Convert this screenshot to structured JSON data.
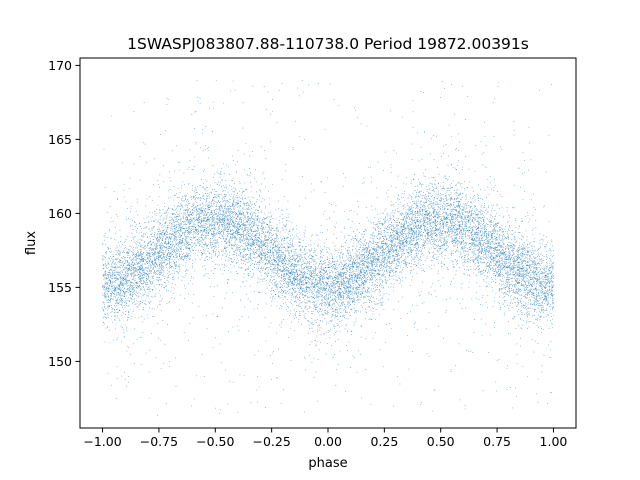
{
  "chart_data": {
    "type": "scatter",
    "title": "1SWASPJ083807.88-110738.0 Period 19872.00391s",
    "xlabel": "phase",
    "ylabel": "flux",
    "xlim": [
      -1.1,
      1.1
    ],
    "ylim": [
      145.5,
      170.5
    ],
    "x_ticks": [
      -1.0,
      -0.75,
      -0.5,
      -0.25,
      0.0,
      0.25,
      0.5,
      0.75,
      1.0
    ],
    "x_tick_labels": [
      "−1.00",
      "−0.75",
      "−0.50",
      "−0.25",
      "0.00",
      "0.25",
      "0.50",
      "0.75",
      "1.00"
    ],
    "y_ticks": [
      150,
      155,
      160,
      165,
      170
    ],
    "y_tick_labels": [
      "150",
      "155",
      "160",
      "165",
      "170"
    ],
    "grid": false,
    "legend": "none",
    "marker_color": "#1f77b4",
    "series": [
      {
        "model": "sinusoid",
        "phase_range": [
          -1.0,
          1.0
        ],
        "phase_of_maximum": -0.5,
        "mean_flux": 157.3,
        "amplitude": 2.2,
        "core_scatter": 1.3,
        "outlier_range": [
          146.5,
          169.0
        ],
        "approx_points": 21000
      }
    ]
  }
}
